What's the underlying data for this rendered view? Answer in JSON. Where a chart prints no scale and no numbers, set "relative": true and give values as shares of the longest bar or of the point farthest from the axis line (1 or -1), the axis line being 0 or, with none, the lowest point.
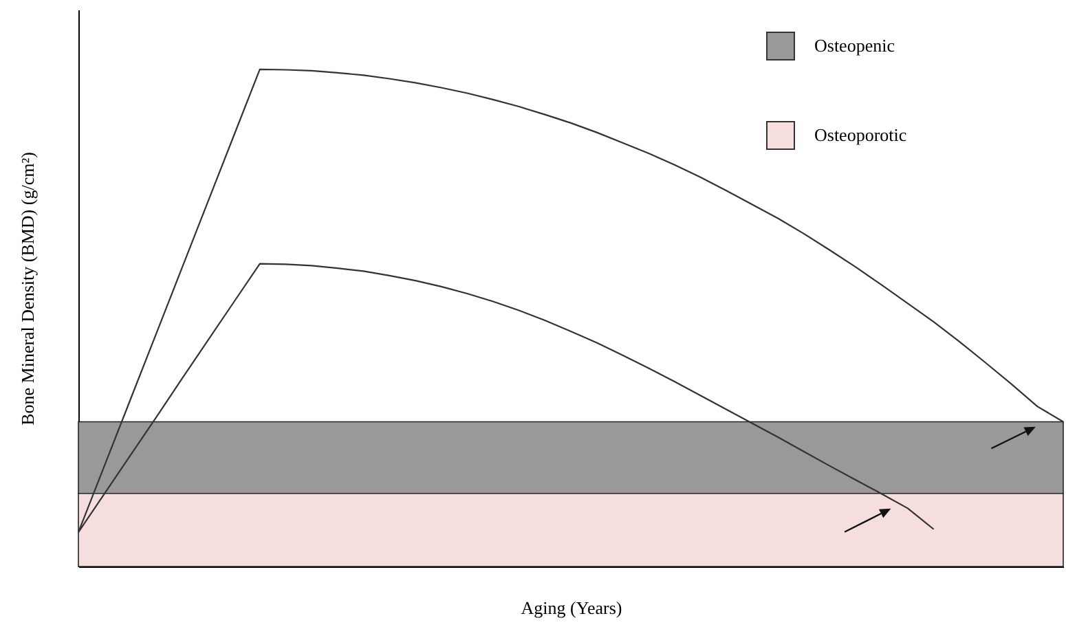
{
  "chart_data": {
    "type": "line",
    "relative": true,
    "xlabel": "Aging (Years)",
    "ylabel": "Bone Mineral Density (BMD) (g/cm²)",
    "categories": [
      null,
      null,
      null,
      null,
      null,
      null,
      null,
      null,
      null,
      null,
      null,
      null,
      null,
      null,
      null,
      null,
      null,
      null,
      null,
      null,
      null,
      null,
      null,
      null,
      null,
      null,
      null,
      null,
      null,
      null,
      null,
      null,
      null,
      null,
      null,
      null,
      null,
      null,
      null
    ],
    "series": [
      {
        "color": "#333333",
        "values": [
          0.069,
          0.202,
          0.335,
          0.468,
          0.601,
          0.734,
          0.867,
          1,
          0.999,
          0.997,
          0.993,
          0.988,
          0.981,
          0.973,
          0.963,
          0.952,
          0.939,
          0.925,
          0.909,
          0.892,
          0.873,
          0.852,
          0.831,
          0.808,
          0.783,
          0.756,
          0.728,
          0.7,
          0.669,
          0.636,
          0.602,
          0.566,
          0.529,
          0.492,
          0.452,
          0.41,
          0.367,
          0.322,
          0.291
        ]
      },
      {
        "color": "#333333",
        "values": [
          0.069,
          0.146,
          0.223,
          0.3,
          0.378,
          0.455,
          0.532,
          0.609,
          0.608,
          0.605,
          0.6,
          0.594,
          0.585,
          0.575,
          0.563,
          0.549,
          0.533,
          0.515,
          0.495,
          0.473,
          0.45,
          0.425,
          0.399,
          0.372,
          0.344,
          0.316,
          0.288,
          0.26,
          0.231,
          0.202,
          0.174,
          0.146,
          0.117,
          0.075,
          null,
          null,
          null,
          null,
          null
        ]
      }
    ],
    "bands": [
      {
        "axis": "y",
        "from": 0.147,
        "to": 0.291,
        "label": "Osteopenic",
        "color": "#999999"
      },
      {
        "axis": "y",
        "from": 0,
        "to": 0.147,
        "label": "Osteoporotic",
        "color": "#f6dede"
      }
    ],
    "legend": "top right",
    "marker": "none",
    "line_style": "solid"
  }
}
